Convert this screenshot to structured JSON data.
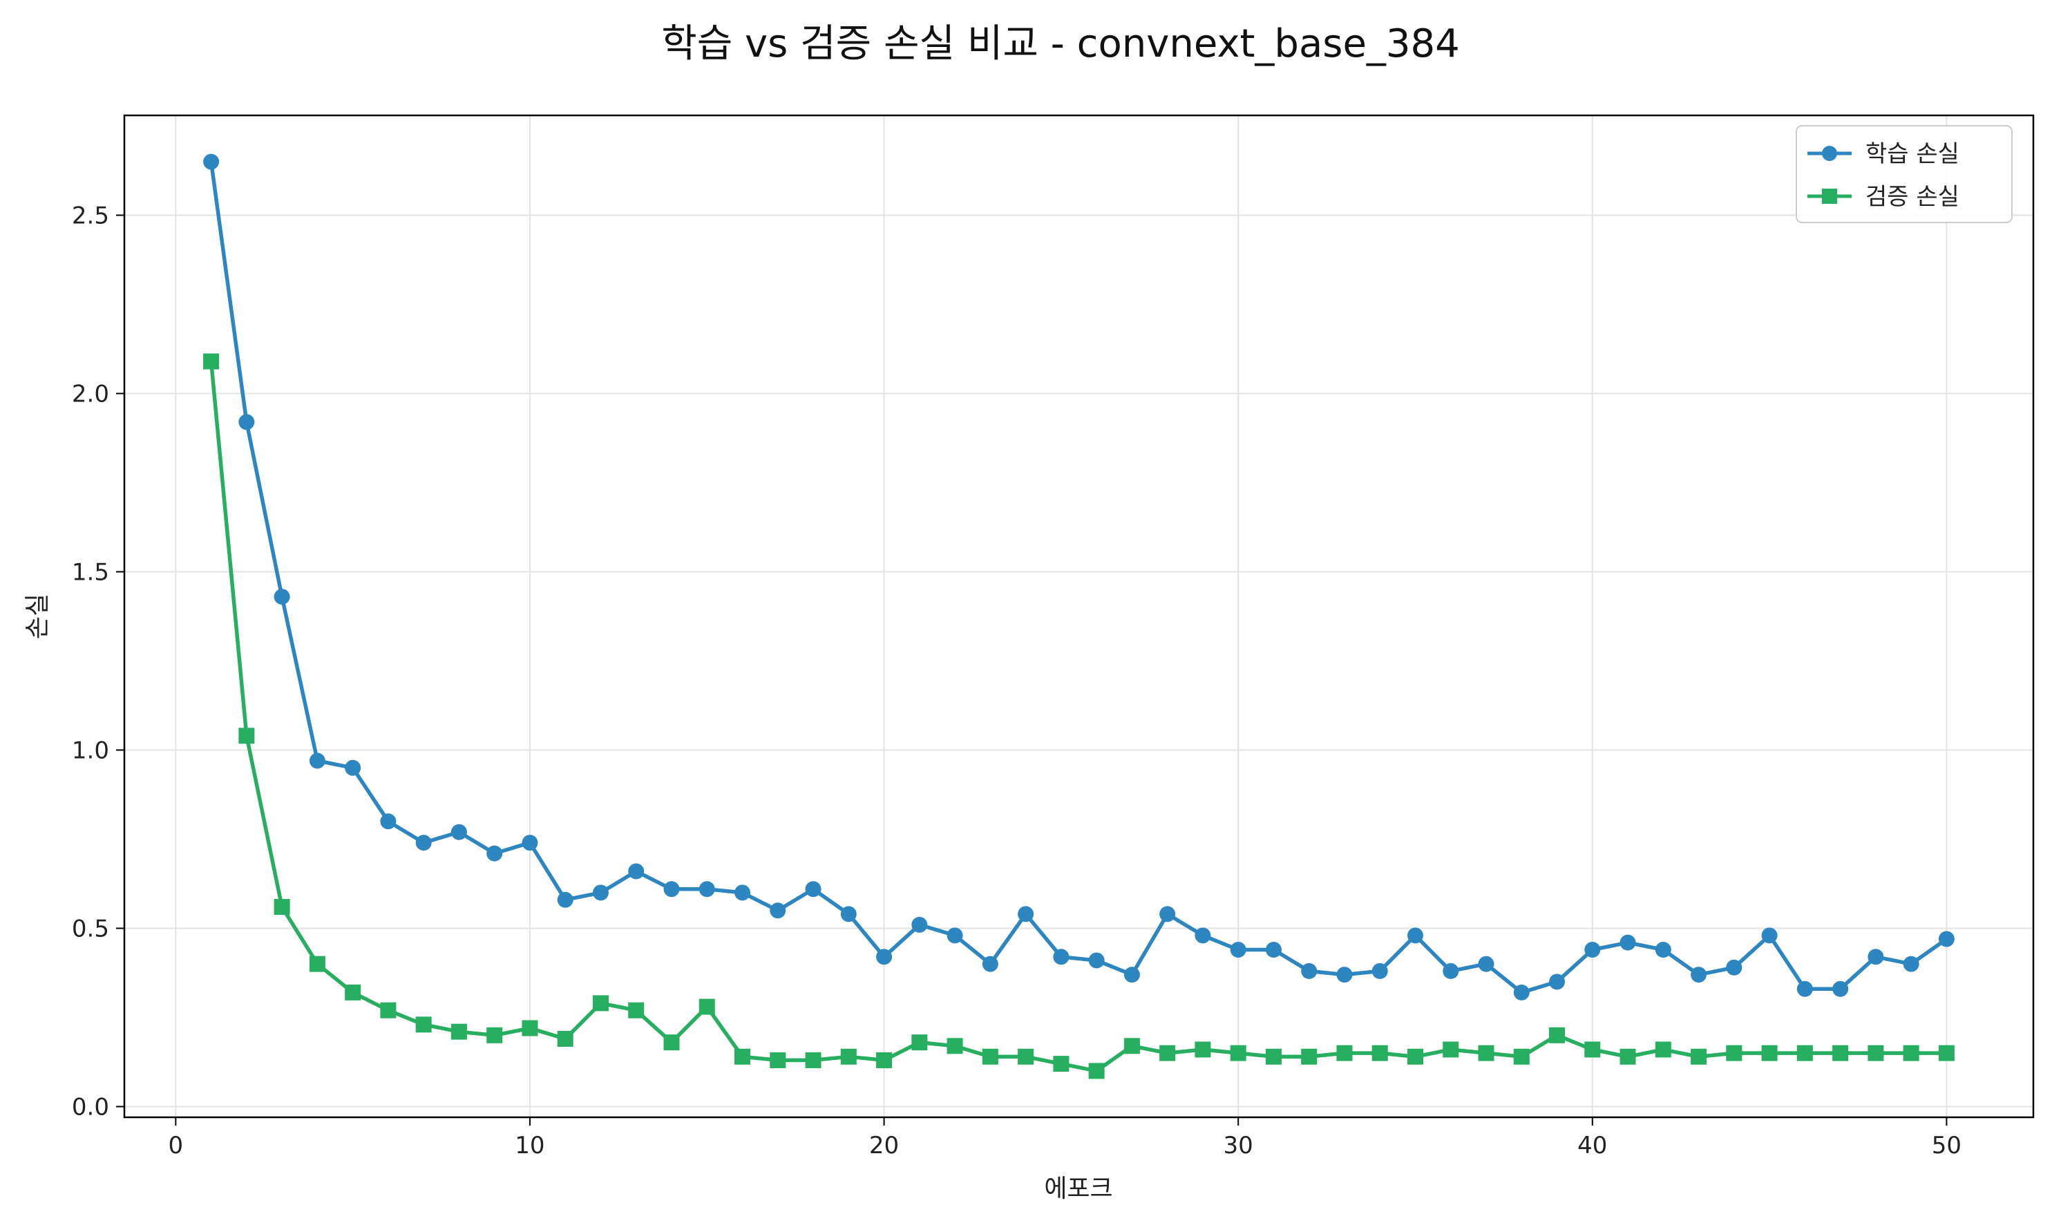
{
  "chart_data": {
    "type": "line",
    "title": "학습 vs 검증 손실 비교 - convnext_base_384",
    "xlabel": "에포크",
    "ylabel": "손실",
    "xlim": [
      -1.45,
      52.45
    ],
    "ylim": [
      -0.03,
      2.78
    ],
    "x_ticks": [
      0,
      10,
      20,
      30,
      40,
      50
    ],
    "y_ticks": [
      0.0,
      0.5,
      1.0,
      1.5,
      2.0,
      2.5
    ],
    "y_tick_labels": [
      "0.0",
      "0.5",
      "1.0",
      "1.5",
      "2.0",
      "2.5"
    ],
    "grid": true,
    "legend_position": "top-right",
    "x": [
      1,
      2,
      3,
      4,
      5,
      6,
      7,
      8,
      9,
      10,
      11,
      12,
      13,
      14,
      15,
      16,
      17,
      18,
      19,
      20,
      21,
      22,
      23,
      24,
      25,
      26,
      27,
      28,
      29,
      30,
      31,
      32,
      33,
      34,
      35,
      36,
      37,
      38,
      39,
      40,
      41,
      42,
      43,
      44,
      45,
      46,
      47,
      48,
      49,
      50
    ],
    "series": [
      {
        "name": "학습 손실",
        "color": "#2e86c1",
        "marker": "circle",
        "values": [
          2.65,
          1.92,
          1.43,
          0.97,
          0.95,
          0.8,
          0.74,
          0.77,
          0.71,
          0.74,
          0.58,
          0.6,
          0.66,
          0.61,
          0.61,
          0.6,
          0.55,
          0.61,
          0.54,
          0.42,
          0.51,
          0.48,
          0.4,
          0.54,
          0.42,
          0.41,
          0.37,
          0.54,
          0.48,
          0.44,
          0.44,
          0.38,
          0.37,
          0.38,
          0.48,
          0.38,
          0.4,
          0.32,
          0.35,
          0.44,
          0.46,
          0.44,
          0.37,
          0.39,
          0.48,
          0.33,
          0.33,
          0.42,
          0.4,
          0.47
        ]
      },
      {
        "name": "검증 손실",
        "color": "#27ae60",
        "marker": "square",
        "values": [
          2.09,
          1.04,
          0.56,
          0.4,
          0.32,
          0.27,
          0.23,
          0.21,
          0.2,
          0.22,
          0.19,
          0.29,
          0.27,
          0.18,
          0.28,
          0.14,
          0.13,
          0.13,
          0.14,
          0.13,
          0.18,
          0.17,
          0.14,
          0.14,
          0.12,
          0.1,
          0.17,
          0.15,
          0.16,
          0.15,
          0.14,
          0.14,
          0.15,
          0.15,
          0.14,
          0.16,
          0.15,
          0.14,
          0.2,
          0.16,
          0.14,
          0.16,
          0.14,
          0.15,
          0.15,
          0.15,
          0.15,
          0.15,
          0.15,
          0.15
        ]
      }
    ]
  }
}
